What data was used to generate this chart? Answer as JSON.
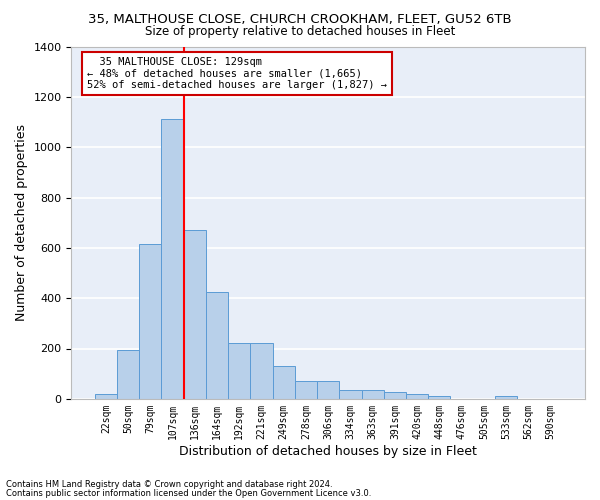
{
  "title_line1": "35, MALTHOUSE CLOSE, CHURCH CROOKHAM, FLEET, GU52 6TB",
  "title_line2": "Size of property relative to detached houses in Fleet",
  "xlabel": "Distribution of detached houses by size in Fleet",
  "ylabel": "Number of detached properties",
  "bar_labels": [
    "22sqm",
    "50sqm",
    "79sqm",
    "107sqm",
    "136sqm",
    "164sqm",
    "192sqm",
    "221sqm",
    "249sqm",
    "278sqm",
    "306sqm",
    "334sqm",
    "363sqm",
    "391sqm",
    "420sqm",
    "448sqm",
    "476sqm",
    "505sqm",
    "533sqm",
    "562sqm",
    "590sqm"
  ],
  "bar_values": [
    20,
    195,
    615,
    1110,
    670,
    425,
    220,
    220,
    130,
    72,
    72,
    35,
    35,
    28,
    20,
    12,
    0,
    0,
    12,
    0,
    0
  ],
  "bar_color": "#b8d0ea",
  "bar_edge_color": "#5b9bd5",
  "background_color": "#e8eef8",
  "grid_color": "#ffffff",
  "red_line_index": 4,
  "annotation_line1": "  35 MALTHOUSE CLOSE: 129sqm",
  "annotation_line2": "← 48% of detached houses are smaller (1,665)",
  "annotation_line3": "52% of semi-detached houses are larger (1,827) →",
  "annotation_box_color": "#ffffff",
  "annotation_box_edge": "#cc0000",
  "footnote1": "Contains HM Land Registry data © Crown copyright and database right 2024.",
  "footnote2": "Contains public sector information licensed under the Open Government Licence v3.0.",
  "ylim": [
    0,
    1400
  ],
  "yticks": [
    0,
    200,
    400,
    600,
    800,
    1000,
    1200,
    1400
  ]
}
